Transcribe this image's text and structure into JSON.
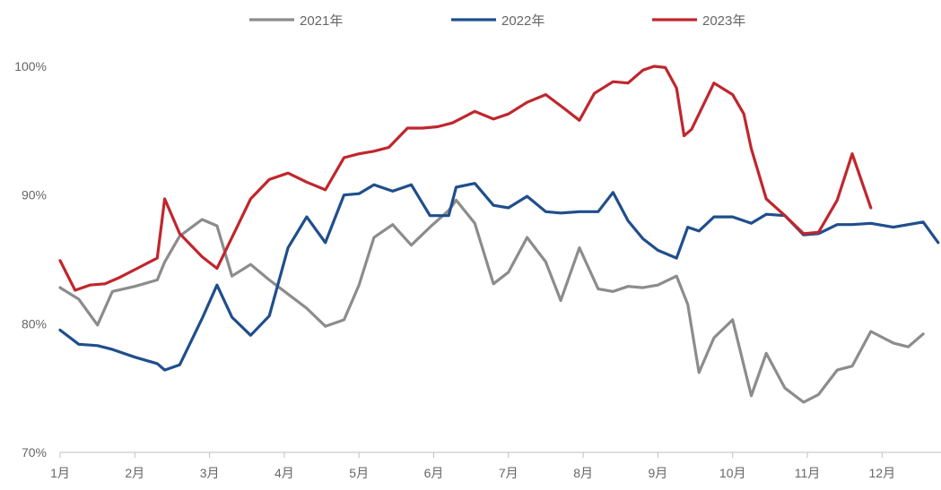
{
  "chart_data": {
    "type": "line",
    "legend": [
      {
        "label": "2021年",
        "color": "#8c8c8c"
      },
      {
        "label": "2022年",
        "color": "#1f4e8c"
      },
      {
        "label": "2023年",
        "color": "#c0262d"
      }
    ],
    "legend_position": "top-center",
    "yticks": [
      "70%",
      "80%",
      "90%",
      "100%"
    ],
    "ylim": [
      70,
      100
    ],
    "xticks": [
      "1月",
      "2月",
      "3月",
      "4月",
      "5月",
      "6月",
      "7月",
      "8月",
      "9月",
      "10月",
      "11月",
      "12月"
    ],
    "xlim": [
      1,
      12.75
    ],
    "grid": false,
    "series": [
      {
        "name": "2021年",
        "color": "#8c8c8c",
        "x": [
          1.0,
          1.25,
          1.5,
          1.7,
          2.0,
          2.3,
          2.4,
          2.6,
          2.9,
          3.1,
          3.3,
          3.55,
          3.8,
          4.05,
          4.3,
          4.55,
          4.8,
          5.0,
          5.2,
          5.45,
          5.7,
          5.95,
          6.2,
          6.3,
          6.55,
          6.8,
          7.0,
          7.25,
          7.5,
          7.7,
          7.95,
          8.2,
          8.4,
          8.6,
          8.8,
          9.0,
          9.25,
          9.4,
          9.55,
          9.75,
          10.0,
          10.25,
          10.45,
          10.7,
          10.95,
          11.15,
          11.4,
          11.6,
          11.85,
          12.15,
          12.35,
          12.55
        ],
        "values": [
          82.8,
          81.9,
          79.9,
          82.5,
          82.9,
          83.4,
          84.8,
          86.8,
          88.1,
          87.6,
          83.7,
          84.6,
          83.4,
          82.3,
          81.2,
          79.8,
          80.3,
          83.0,
          86.7,
          87.7,
          86.1,
          87.5,
          88.8,
          89.6,
          87.8,
          83.1,
          84.0,
          86.7,
          84.8,
          81.8,
          85.9,
          82.7,
          82.5,
          82.9,
          82.8,
          83.0,
          83.7,
          81.5,
          76.2,
          78.9,
          80.3,
          74.4,
          77.7,
          75.0,
          73.9,
          74.5,
          76.4,
          76.7,
          79.4,
          78.5,
          78.2,
          79.2
        ]
      },
      {
        "name": "2022年",
        "color": "#1f4e8c",
        "x": [
          1.0,
          1.25,
          1.5,
          1.7,
          2.0,
          2.3,
          2.4,
          2.6,
          2.9,
          3.1,
          3.3,
          3.55,
          3.8,
          4.05,
          4.3,
          4.55,
          4.8,
          5.0,
          5.2,
          5.45,
          5.7,
          5.95,
          6.2,
          6.3,
          6.55,
          6.8,
          7.0,
          7.25,
          7.5,
          7.7,
          7.95,
          8.2,
          8.4,
          8.6,
          8.8,
          9.0,
          9.25,
          9.4,
          9.55,
          9.75,
          10.0,
          10.25,
          10.45,
          10.7,
          10.95,
          11.15,
          11.4,
          11.6,
          11.85,
          12.15,
          12.35,
          12.55,
          12.75
        ],
        "values": [
          79.5,
          78.4,
          78.3,
          78.0,
          77.4,
          76.9,
          76.4,
          76.8,
          80.4,
          83.0,
          80.5,
          79.1,
          80.6,
          85.9,
          88.3,
          86.3,
          90.0,
          90.1,
          90.8,
          90.3,
          90.8,
          88.4,
          88.4,
          90.6,
          90.9,
          89.2,
          89.0,
          89.9,
          88.7,
          88.6,
          88.7,
          88.7,
          90.2,
          88.0,
          86.6,
          85.7,
          85.1,
          87.5,
          87.2,
          88.3,
          88.3,
          87.8,
          88.5,
          88.4,
          86.9,
          87.0,
          87.7,
          87.7,
          87.8,
          87.5,
          87.7,
          87.9,
          86.3
        ]
      },
      {
        "name": "2023年",
        "color": "#c0262d",
        "x": [
          1.0,
          1.2,
          1.4,
          1.6,
          1.8,
          2.0,
          2.3,
          2.4,
          2.6,
          2.9,
          3.1,
          3.3,
          3.55,
          3.8,
          4.05,
          4.3,
          4.55,
          4.8,
          5.0,
          5.2,
          5.4,
          5.65,
          5.85,
          6.05,
          6.25,
          6.55,
          6.8,
          7.0,
          7.25,
          7.5,
          7.75,
          7.95,
          8.15,
          8.4,
          8.6,
          8.8,
          8.95,
          9.1,
          9.25,
          9.35,
          9.45,
          9.75,
          10.0,
          10.15,
          10.25,
          10.45,
          10.7,
          10.95,
          11.15,
          11.4,
          11.6,
          11.85
        ],
        "values": [
          84.9,
          82.6,
          83.0,
          83.1,
          83.6,
          84.2,
          85.1,
          89.7,
          87.0,
          85.2,
          84.3,
          86.7,
          89.7,
          91.2,
          91.7,
          91.0,
          90.4,
          92.9,
          93.2,
          93.4,
          93.7,
          95.2,
          95.2,
          95.3,
          95.6,
          96.5,
          95.9,
          96.3,
          97.2,
          97.8,
          96.7,
          95.8,
          97.9,
          98.8,
          98.7,
          99.7,
          100.0,
          99.9,
          98.3,
          94.6,
          95.1,
          98.7,
          97.8,
          96.3,
          93.6,
          89.7,
          88.4,
          87.0,
          87.1,
          89.6,
          93.2,
          89.0
        ]
      }
    ]
  }
}
